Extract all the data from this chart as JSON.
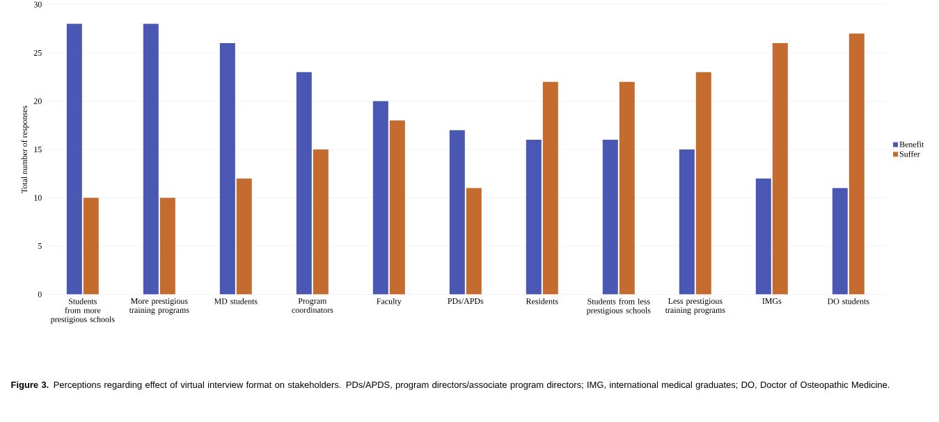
{
  "chart_data": {
    "type": "bar",
    "ylabel": "Total number of responses",
    "categories": [
      "Students from more prestigious schools",
      "More prestigious training programs",
      "MD students",
      "Program coordinators",
      "Faculty",
      "PDs/APDs",
      "Residents",
      "Students from less prestigious schools",
      "Less prestigious training programs",
      "IMGs",
      "DO students"
    ],
    "series": [
      {
        "name": "Benefit",
        "color": "#4a58b4",
        "values": [
          28,
          28,
          26,
          23,
          20,
          17,
          16,
          16,
          15,
          12,
          11
        ]
      },
      {
        "name": "Suffer",
        "color": "#c46c30",
        "values": [
          10,
          10,
          12,
          15,
          18,
          11,
          22,
          22,
          23,
          26,
          27
        ]
      }
    ],
    "ylim": [
      0,
      30
    ],
    "yticks": [
      0,
      5,
      10,
      15,
      20,
      25,
      30
    ],
    "grid": "y",
    "legend": "right",
    "annotations": [
      "**Figure 3.** Perceptions regarding effect of virtual interview format on stakeholders. PDs/APDS, program directors/associate program directors; IMG, international medical graduates; DO, Doctor of Osteopathic Medicine."
    ]
  }
}
